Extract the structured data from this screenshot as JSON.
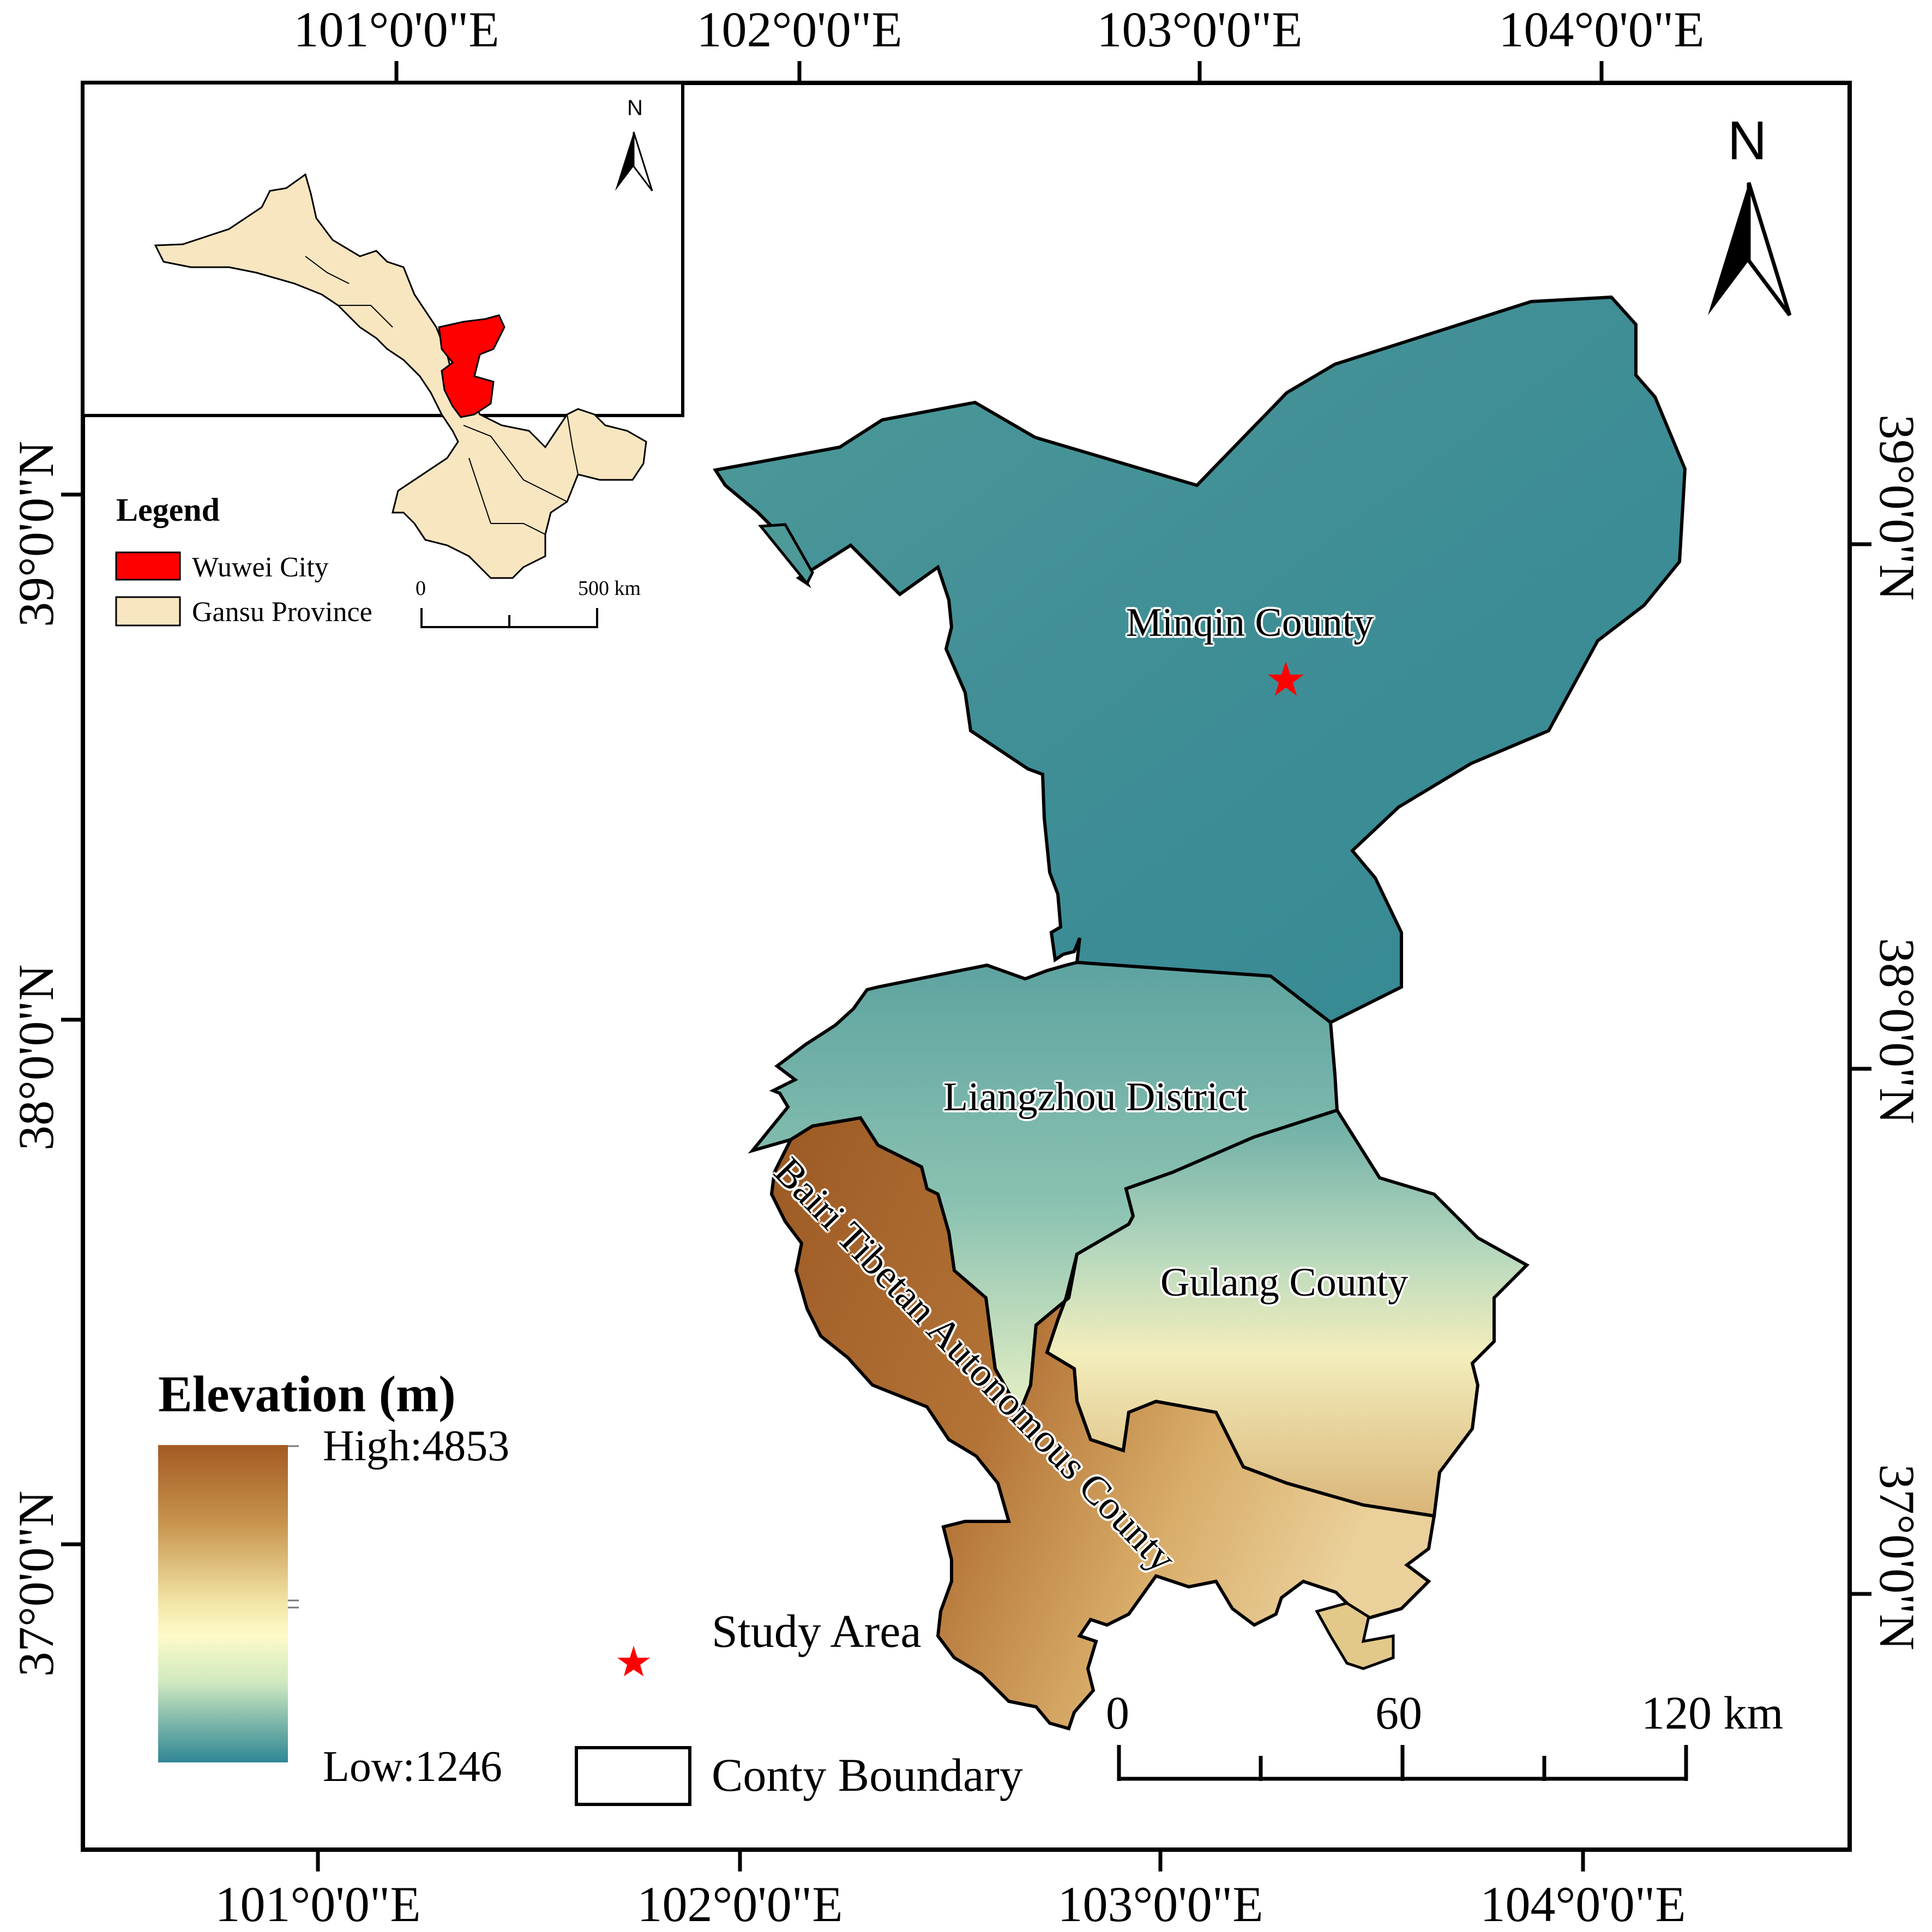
{
  "graticule": {
    "top_labels": [
      "101°0'0\"E",
      "102°0'0\"E",
      "103°0'0\"E",
      "104°0'0\"E"
    ],
    "bottom_labels": [
      "101°0'0\"E",
      "102°0'0\"E",
      "103°0'0\"E",
      "104°0'0\"E"
    ],
    "left_labels": [
      "39°0'0\"N",
      "38°0'0\"N",
      "37°0'0\"N"
    ],
    "right_labels": [
      "39°0'0\"N",
      "38°0'0\"N",
      "37°0'0\"N"
    ]
  },
  "north_arrow_label": "N",
  "inset": {
    "north_arrow_label": "N",
    "legend_title": "Legend",
    "legend_items": [
      {
        "label": "Wuwei City",
        "color": "#ff0000"
      },
      {
        "label": "Gansu Province",
        "color": "#f5e6c0"
      }
    ],
    "scale_labels": [
      "0",
      "500 km"
    ]
  },
  "counties": {
    "minqin": "Minqin County",
    "liangzhou": "Liangzhou District",
    "gulang": "Gulang County",
    "tianzhu": "Bairi Tibetan Autonomous County"
  },
  "elevation_legend": {
    "title": "Elevation (m)",
    "high": "High:4853",
    "low": "Low:1246",
    "colors": [
      "#a35a22",
      "#c8954f",
      "#f3e6a8",
      "#fdfbc8",
      "#cfe8c0",
      "#79b5a8",
      "#2f8695"
    ]
  },
  "symbol_legend": {
    "study_area": "Study Area",
    "county_boundary": "Conty Boundary",
    "star_color": "#ff0000"
  },
  "scale_bar": {
    "labels": [
      "0",
      "60",
      "120 km"
    ]
  }
}
